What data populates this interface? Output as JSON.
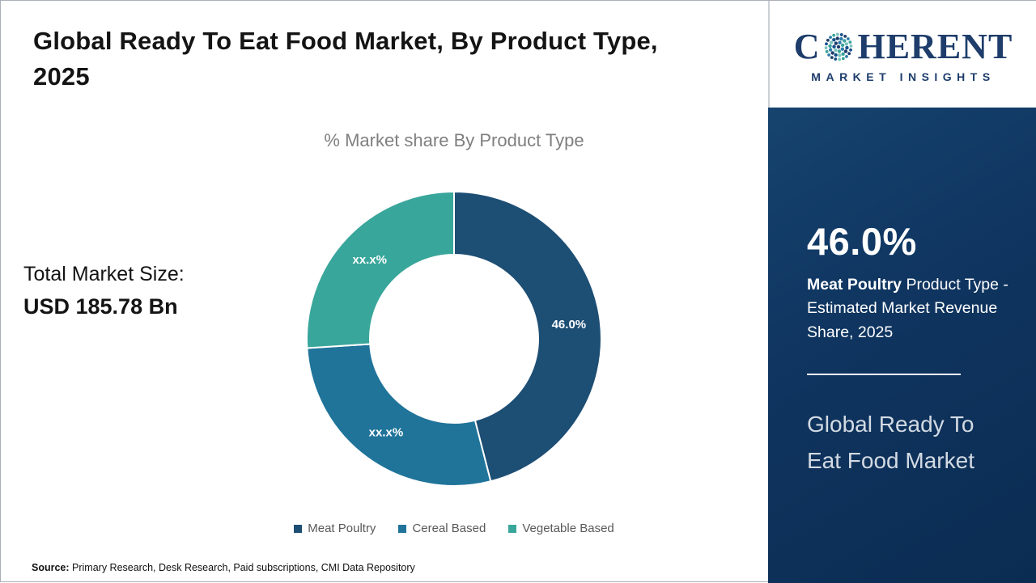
{
  "header": {
    "title": "Global Ready To Eat Food Market, By Product Type, 2025"
  },
  "chart_data": {
    "type": "pie",
    "donut": true,
    "title": "% Market share By Product Type",
    "categories": [
      "Meat Poultry",
      "Cereal Based",
      "Vegetable Based"
    ],
    "values": [
      46.0,
      28.0,
      26.0
    ],
    "labels": [
      "46.0%",
      "xx.x%",
      "xx.x%"
    ],
    "colors": [
      "#1d4e74",
      "#20749a",
      "#39a69b"
    ],
    "legend_position": "bottom"
  },
  "market_size": {
    "label": "Total Market Size:",
    "value": "USD 185.78 Bn"
  },
  "sidebar": {
    "highlight_value": "46.0%",
    "highlight_bold": "Meat Poultry",
    "highlight_rest": " Product Type - Estimated Market Revenue Share, 2025",
    "panel_title": "Global Ready To Eat Food Market",
    "panel_background": "#0f3560"
  },
  "logo": {
    "line1_prefix": "C",
    "line1_suffix": "HERENT",
    "line2": "MARKET INSIGHTS",
    "brand_navy": "#1e3d6b",
    "brand_teal": "#3aa39a"
  },
  "source": {
    "label": "Source:",
    "text": " Primary Research, Desk Research, Paid subscriptions, CMI Data Repository"
  }
}
